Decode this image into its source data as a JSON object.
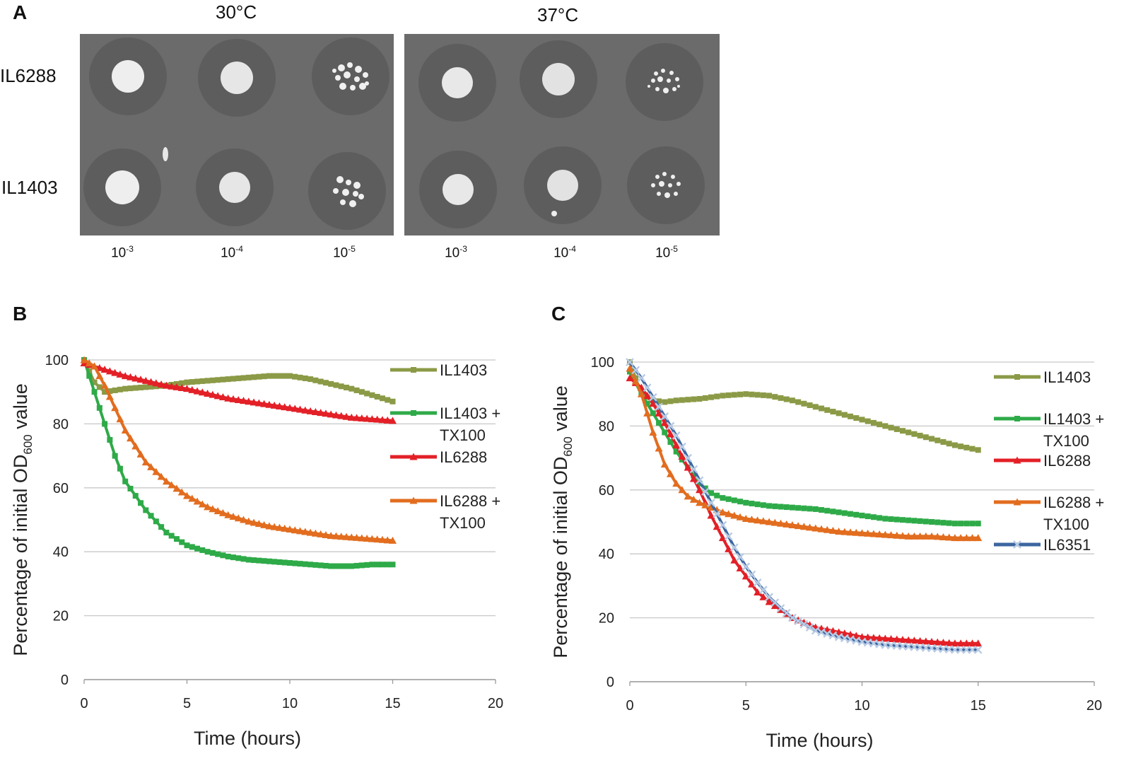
{
  "figure": {
    "panel_a": {
      "letter": "A",
      "temps": [
        "30°C",
        "37°C"
      ],
      "strains": [
        "IL6288",
        "IL1403"
      ],
      "dilutions": [
        {
          "base": "10",
          "exp": "-3"
        },
        {
          "base": "10",
          "exp": "-4"
        },
        {
          "base": "10",
          "exp": "-5"
        }
      ],
      "colors": {
        "plate": "#6b6b6b",
        "halo": "#5b5b5b",
        "colony": "#f2f2f2"
      }
    }
  },
  "chart_data": [
    {
      "panel": "B",
      "type": "line",
      "title": "",
      "xlabel": "Time (hours)",
      "ylabel": "Percentage of initial OD600 value",
      "ylabel_parts": {
        "main": "Percentage of initial OD",
        "sub": "600",
        "tail": " value"
      },
      "xlim": [
        0,
        20
      ],
      "ylim": [
        0,
        100
      ],
      "xticks": [
        0,
        5,
        10,
        15,
        20
      ],
      "yticks": [
        0,
        20,
        40,
        60,
        80,
        100
      ],
      "grid": true,
      "legend_position": "right",
      "series": [
        {
          "name": "IL1403",
          "legend_lines": [
            "IL1403"
          ],
          "color": "#8b9a46",
          "marker": "square",
          "x": [
            0,
            0.5,
            1,
            1.5,
            2,
            3,
            4,
            5,
            6,
            7,
            8,
            9,
            10,
            11,
            12,
            13,
            14,
            15
          ],
          "y": [
            100,
            93,
            90,
            90.5,
            91,
            91.5,
            92,
            93,
            93.5,
            94,
            94.5,
            95,
            95,
            94,
            92.5,
            91,
            89,
            87
          ]
        },
        {
          "name": "IL1403 + TX100",
          "legend_lines": [
            "IL1403 +",
            "TX100"
          ],
          "color": "#2eaa48",
          "marker": "square",
          "x": [
            0,
            0.5,
            1,
            1.5,
            2,
            3,
            4,
            5,
            6,
            7,
            8,
            9,
            10,
            11,
            12,
            13,
            14,
            15
          ],
          "y": [
            100,
            90,
            80,
            70,
            62,
            53,
            46,
            42,
            40,
            38.5,
            37.5,
            37,
            36.5,
            36,
            35.5,
            35.5,
            36,
            36
          ]
        },
        {
          "name": "IL6288",
          "legend_lines": [
            "IL6288"
          ],
          "color": "#e32027",
          "marker": "triangle",
          "x": [
            0,
            1,
            2,
            3,
            4,
            5,
            6,
            7,
            8,
            9,
            10,
            11,
            12,
            13,
            14,
            15
          ],
          "y": [
            99,
            97,
            95,
            93.5,
            92,
            91,
            89.5,
            88,
            87,
            86,
            85,
            84,
            83,
            82,
            81.5,
            81
          ]
        },
        {
          "name": "IL6288 + TX100",
          "legend_lines": [
            "IL6288 +",
            "TX100"
          ],
          "color": "#e26d1f",
          "marker": "triangle",
          "x": [
            0,
            0.5,
            1,
            1.5,
            2,
            3,
            4,
            5,
            6,
            7,
            8,
            9,
            10,
            11,
            12,
            13,
            14,
            15
          ],
          "y": [
            100,
            98,
            92,
            85,
            78,
            68,
            62,
            57.5,
            54,
            51.5,
            49.5,
            48,
            47,
            46,
            45,
            44.5,
            44,
            43.5
          ]
        }
      ]
    },
    {
      "panel": "C",
      "type": "line",
      "title": "",
      "xlabel": "Time (hours)",
      "ylabel": "Percentage of initial OD600 value",
      "ylabel_parts": {
        "main": "Percentage of initial OD",
        "sub": "600",
        "tail": " value"
      },
      "xlim": [
        0,
        20
      ],
      "ylim": [
        0,
        100
      ],
      "xticks": [
        0,
        5,
        10,
        15,
        20
      ],
      "yticks": [
        0,
        20,
        40,
        60,
        80,
        100
      ],
      "grid": true,
      "legend_position": "right",
      "series": [
        {
          "name": "IL1403",
          "legend_lines": [
            "IL1403"
          ],
          "color": "#8b9a46",
          "marker": "square",
          "x": [
            0,
            0.5,
            1,
            1.5,
            2,
            3,
            4,
            5,
            6,
            7,
            8,
            9,
            10,
            11,
            12,
            13,
            14,
            15
          ],
          "y": [
            100,
            90,
            88,
            87.5,
            88,
            88.5,
            89.5,
            90,
            89.5,
            88,
            86,
            84,
            82,
            80,
            78,
            76,
            74,
            72.5
          ]
        },
        {
          "name": "IL1403 + TX100",
          "legend_lines": [
            "IL1403 +",
            "TX100"
          ],
          "color": "#2eaa48",
          "marker": "square",
          "x": [
            0,
            0.5,
            1,
            1.5,
            2,
            2.5,
            3,
            3.5,
            4,
            5,
            6,
            7,
            8,
            9,
            10,
            11,
            12,
            13,
            14,
            15
          ],
          "y": [
            97,
            90,
            84,
            78,
            72,
            67,
            62,
            59,
            57.5,
            56,
            55,
            54.5,
            54,
            53,
            52,
            51,
            50.5,
            50,
            49.5,
            49.5
          ]
        },
        {
          "name": "IL6288",
          "legend_lines": [
            "IL6288"
          ],
          "color": "#e32027",
          "marker": "triangle",
          "x": [
            0,
            0.5,
            1,
            1.5,
            2,
            2.5,
            3,
            3.5,
            4,
            4.5,
            5,
            5.5,
            6,
            6.5,
            7,
            8,
            9,
            10,
            11,
            12,
            13,
            14,
            15
          ],
          "y": [
            95,
            92,
            87,
            81,
            74,
            67,
            60,
            52,
            45,
            38,
            33,
            28,
            25,
            22.5,
            20,
            17,
            15.5,
            14,
            13.5,
            13,
            12.5,
            12,
            12
          ]
        },
        {
          "name": "IL6288 + TX100",
          "legend_lines": [
            "IL6288 +",
            "TX100"
          ],
          "color": "#e26d1f",
          "marker": "triangle",
          "x": [
            0,
            0.5,
            1,
            1.5,
            2,
            2.5,
            3,
            3.5,
            4,
            5,
            6,
            7,
            8,
            9,
            10,
            11,
            12,
            13,
            14,
            15
          ],
          "y": [
            98,
            90,
            78,
            68,
            62,
            58,
            56,
            54.5,
            53,
            51,
            50,
            49,
            48,
            47,
            46.5,
            46,
            45.5,
            45.5,
            45,
            45
          ]
        },
        {
          "name": "IL6351",
          "legend_lines": [
            "IL6351"
          ],
          "color": "#3c66a0",
          "marker": "x",
          "x": [
            0,
            0.5,
            1,
            1.5,
            2,
            2.5,
            3,
            3.5,
            4,
            4.5,
            5,
            5.5,
            6,
            6.5,
            7,
            8,
            9,
            10,
            11,
            12,
            13,
            14,
            15
          ],
          "y": [
            100,
            95,
            89,
            83,
            77,
            70,
            63,
            56,
            49,
            42,
            36,
            31,
            26.5,
            23,
            20,
            16,
            14,
            12.5,
            11.5,
            11,
            10.5,
            10,
            10
          ]
        }
      ]
    }
  ]
}
